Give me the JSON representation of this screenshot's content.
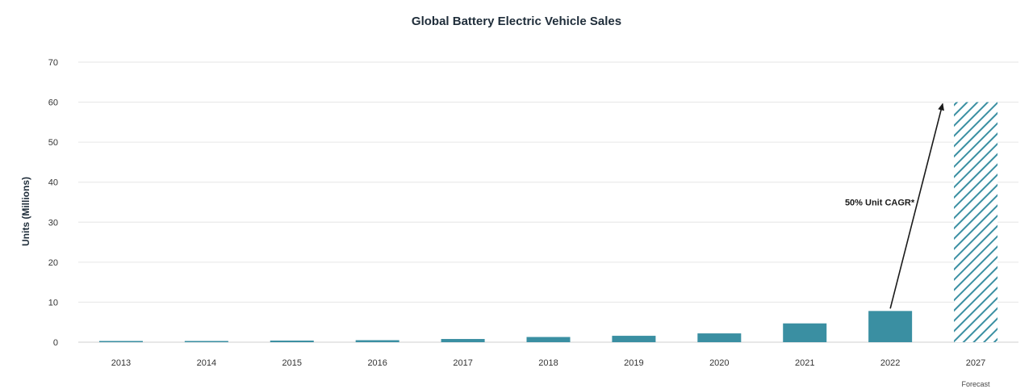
{
  "chart_data": {
    "type": "bar",
    "title": "Global Battery Electric Vehicle Sales",
    "xlabel": "",
    "ylabel": "Units (Millions)",
    "ylim": [
      0,
      70
    ],
    "yticks": [
      0,
      10,
      20,
      30,
      40,
      50,
      60,
      70
    ],
    "grid": true,
    "categories": [
      "2013",
      "2014",
      "2015",
      "2016",
      "2017",
      "2018",
      "2019",
      "2020",
      "2021",
      "2022",
      "2027"
    ],
    "values": [
      0.1,
      0.2,
      0.4,
      0.5,
      0.8,
      1.3,
      1.6,
      2.2,
      4.7,
      7.8,
      60
    ],
    "forecast_category": "2027",
    "forecast_label": "Forecast",
    "annotation": {
      "text": "50% Unit CAGR*",
      "from_category": "2022",
      "to_category": "2027"
    },
    "colors": {
      "bar": "#3a8fa2",
      "forecast_hatch": "#3a8fa2",
      "grid": "#e6e6e6",
      "arrow": "#1a1a1a"
    }
  }
}
